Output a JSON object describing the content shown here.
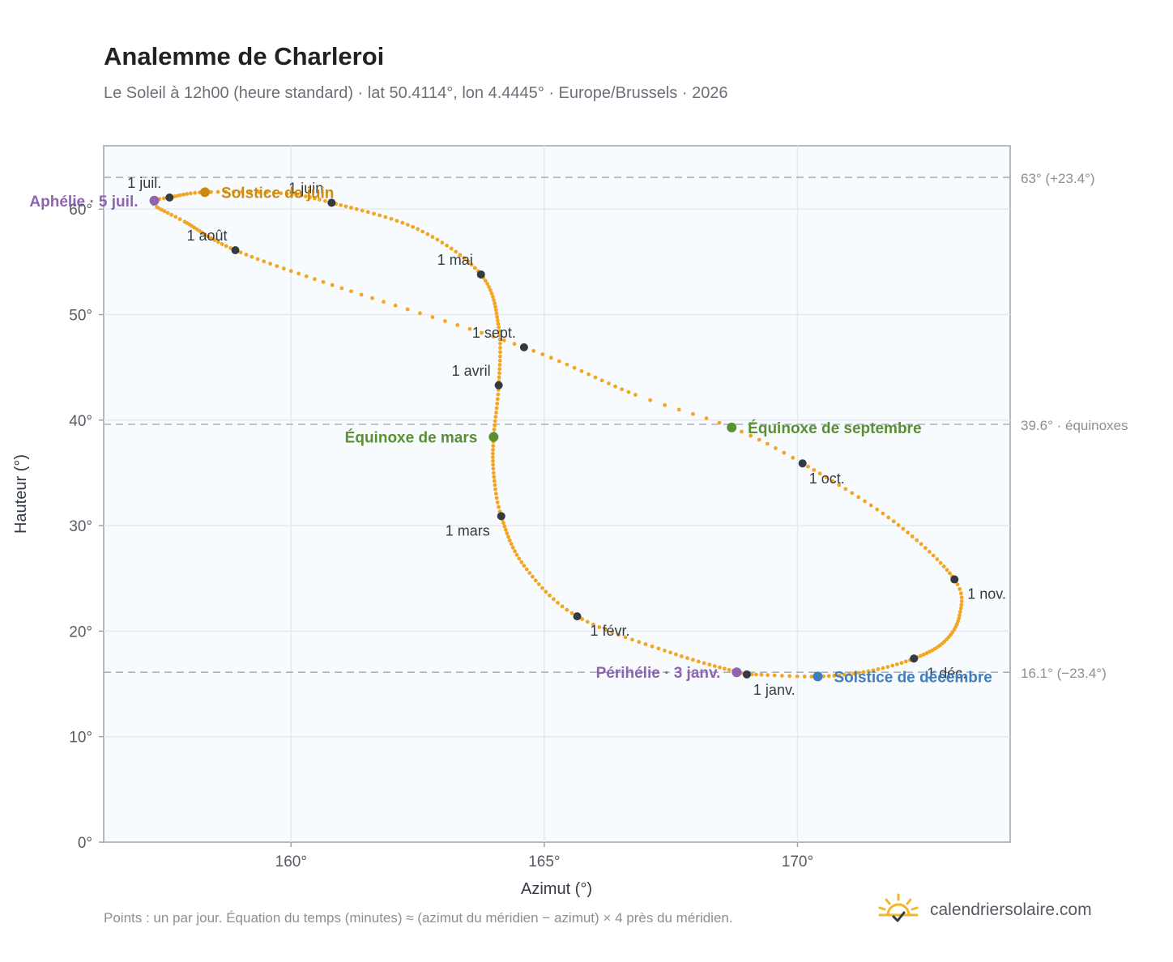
{
  "header": {
    "title": "Analemme de Charleroi",
    "subtitle": "Le Soleil à 12h00 (heure standard) · lat 50.4114°, lon 4.4445° · Europe/Brussels · 2026"
  },
  "footer": {
    "note": "Points : un par jour. Équation du temps (minutes) ≈ (azimut du méridien − azimut) × 4 près du méridien.",
    "brand": "calendriersolaire.com",
    "brand_icon": "sun-check-icon"
  },
  "colors": {
    "curve": "#f2a623",
    "month_marker": "#333a44",
    "equinox": "#5a8f32",
    "june_solstice": "#cc8a10",
    "december_solstice": "#3d7ebf",
    "aphelion_perihelion": "#8e63b0",
    "plot_bg": "#f8fbfe",
    "grid": "#e3e9ef",
    "reference_line": "#aab2bd"
  },
  "chart_data": {
    "type": "scatter",
    "xlabel": "Azimut (°)",
    "ylabel": "Hauteur (°)",
    "xlim": [
      156.3,
      174.2
    ],
    "ylim": [
      0,
      66
    ],
    "x_ticks": [
      160,
      165,
      170
    ],
    "x_tick_labels": [
      "160°",
      "165°",
      "170°"
    ],
    "y_ticks": [
      0,
      10,
      20,
      30,
      40,
      50,
      60
    ],
    "y_tick_labels": [
      "0°",
      "10°",
      "20°",
      "30°",
      "40°",
      "50°",
      "60°"
    ],
    "grid": true,
    "series": [
      {
        "points_per": "day",
        "anchors": [
          {
            "date": "01-01",
            "az": 169.0,
            "alt": 15.9
          },
          {
            "date": "01-16",
            "az": 167.6,
            "alt": 17.8
          },
          {
            "date": "02-01",
            "az": 165.65,
            "alt": 21.4
          },
          {
            "date": "02-15",
            "az": 164.6,
            "alt": 26.2
          },
          {
            "date": "03-01",
            "az": 164.15,
            "alt": 30.9
          },
          {
            "date": "03-11",
            "az": 164.0,
            "alt": 35.0
          },
          {
            "date": "03-20",
            "az": 164.0,
            "alt": 38.4
          },
          {
            "date": "04-01",
            "az": 164.1,
            "alt": 43.3
          },
          {
            "date": "04-15",
            "az": 164.1,
            "alt": 48.8
          },
          {
            "date": "05-01",
            "az": 163.75,
            "alt": 53.8
          },
          {
            "date": "05-16",
            "az": 162.5,
            "alt": 58.1
          },
          {
            "date": "06-01",
            "az": 160.8,
            "alt": 60.6
          },
          {
            "date": "06-11",
            "az": 159.8,
            "alt": 61.5
          },
          {
            "date": "06-21",
            "az": 158.3,
            "alt": 61.6
          },
          {
            "date": "07-01",
            "az": 157.6,
            "alt": 61.1
          },
          {
            "date": "07-05",
            "az": 157.3,
            "alt": 60.8
          },
          {
            "date": "07-08",
            "az": 157.35,
            "alt": 60.2
          },
          {
            "date": "07-16",
            "az": 157.9,
            "alt": 58.8
          },
          {
            "date": "08-01",
            "az": 158.9,
            "alt": 56.1
          },
          {
            "date": "08-16",
            "az": 161.0,
            "alt": 52.5
          },
          {
            "date": "09-01",
            "az": 164.6,
            "alt": 46.9
          },
          {
            "date": "09-16",
            "az": 166.8,
            "alt": 42.4
          },
          {
            "date": "09-23",
            "az": 168.7,
            "alt": 39.3
          },
          {
            "date": "10-01",
            "az": 170.1,
            "alt": 35.9
          },
          {
            "date": "10-16",
            "az": 171.9,
            "alt": 30.4
          },
          {
            "date": "11-01",
            "az": 173.1,
            "alt": 24.9
          },
          {
            "date": "11-10",
            "az": 173.2,
            "alt": 21.5
          },
          {
            "date": "11-20",
            "az": 172.9,
            "alt": 19.0
          },
          {
            "date": "12-01",
            "az": 172.3,
            "alt": 17.4
          },
          {
            "date": "12-11",
            "az": 171.4,
            "alt": 16.2
          },
          {
            "date": "12-21",
            "az": 170.4,
            "alt": 15.7
          },
          {
            "date": "12-31",
            "az": 169.1,
            "alt": 15.9
          }
        ]
      }
    ],
    "month_markers": [
      {
        "label": "1 janv.",
        "az": 169.0,
        "alt": 15.9,
        "label_pos": "below-right"
      },
      {
        "label": "1 févr.",
        "az": 165.65,
        "alt": 21.4,
        "label_pos": "right"
      },
      {
        "label": "1 mars",
        "az": 164.15,
        "alt": 30.9,
        "label_pos": "below-left"
      },
      {
        "label": "1 avril",
        "az": 164.1,
        "alt": 43.3,
        "label_pos": "above-left"
      },
      {
        "label": "1 mai",
        "az": 163.75,
        "alt": 53.8,
        "label_pos": "above-left"
      },
      {
        "label": "1 juin",
        "az": 160.8,
        "alt": 60.6,
        "label_pos": "above-left"
      },
      {
        "label": "1 juil.",
        "az": 157.6,
        "alt": 61.1,
        "label_pos": "above-left"
      },
      {
        "label": "1 août",
        "az": 158.9,
        "alt": 56.1,
        "label_pos": "above-left"
      },
      {
        "label": "1 sept.",
        "az": 164.6,
        "alt": 46.9,
        "label_pos": "above-left"
      },
      {
        "label": "1 oct.",
        "az": 170.1,
        "alt": 35.9,
        "label_pos": "below-right"
      },
      {
        "label": "1 nov.",
        "az": 173.1,
        "alt": 24.9,
        "label_pos": "right"
      },
      {
        "label": "1 déc.",
        "az": 172.3,
        "alt": 17.4,
        "label_pos": "right"
      }
    ],
    "events": [
      {
        "label": "Équinoxe de mars",
        "az": 164.0,
        "alt": 38.4,
        "kind": "equinox",
        "label_pos": "left"
      },
      {
        "label": "Équinoxe de septembre",
        "az": 168.7,
        "alt": 39.3,
        "kind": "equinox",
        "label_pos": "right"
      },
      {
        "label": "Solstice de juin",
        "az": 158.3,
        "alt": 61.6,
        "kind": "june_solstice",
        "label_pos": "right"
      },
      {
        "label": "Solstice de décembre",
        "az": 170.4,
        "alt": 15.7,
        "kind": "december_solstice",
        "label_pos": "right"
      },
      {
        "label": "Aphélie · 5 juil.",
        "az": 157.3,
        "alt": 60.8,
        "kind": "aphelion_perihelion",
        "label_pos": "left"
      },
      {
        "label": "Périhélie · 3 janv.",
        "az": 168.8,
        "alt": 16.1,
        "kind": "aphelion_perihelion",
        "label_pos": "left"
      }
    ],
    "reference_lines": [
      {
        "alt": 63.0,
        "label": "63° (+23.4°)"
      },
      {
        "alt": 39.6,
        "label": "39.6° · équinoxes"
      },
      {
        "alt": 16.1,
        "label": "16.1° (−23.4°)"
      }
    ]
  }
}
